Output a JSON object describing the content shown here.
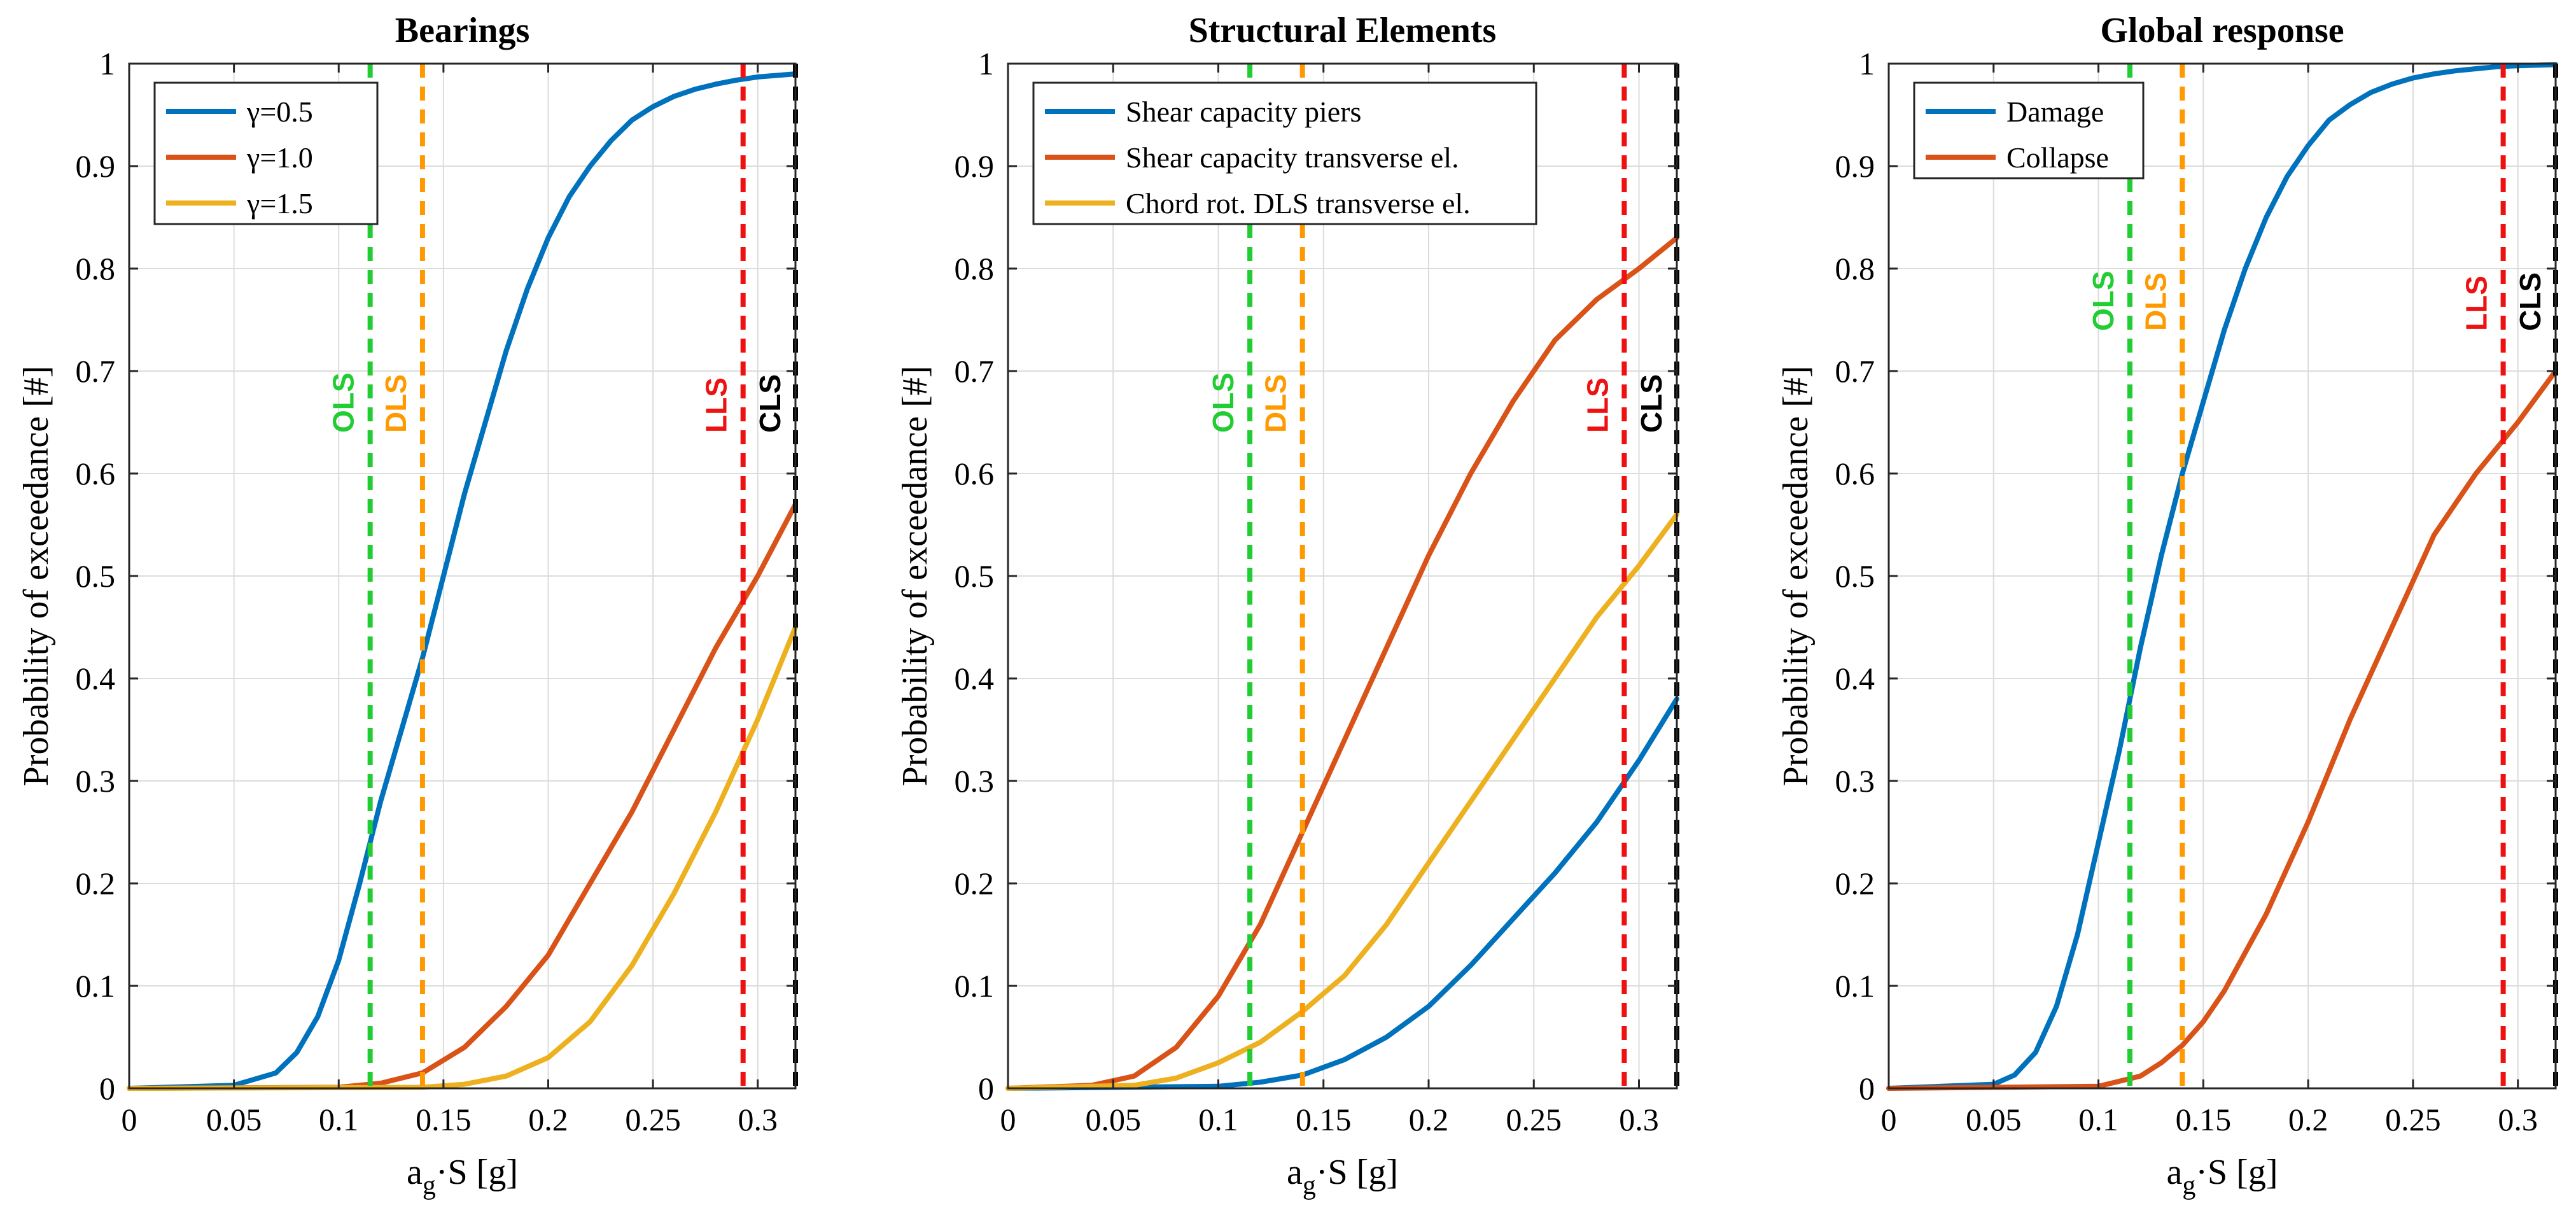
{
  "chart_data": [
    {
      "type": "line",
      "title": "Bearings",
      "xlabel_main": "a",
      "xlabel_sub": "g",
      "xlabel_rest": "·S [g]",
      "ylabel": "Probability of exceedance [#]",
      "xlim": [
        0,
        0.318
      ],
      "ylim": [
        0,
        1
      ],
      "xticks": [
        0,
        0.05,
        0.1,
        0.15,
        0.2,
        0.25,
        0.3
      ],
      "xtick_labels": [
        "0",
        "0.05",
        "0.1",
        "0.15",
        "0.2",
        "0.25",
        "0.3"
      ],
      "yticks": [
        0,
        0.1,
        0.2,
        0.3,
        0.4,
        0.5,
        0.6,
        0.7,
        0.8,
        0.9,
        1
      ],
      "ytick_labels": [
        "0",
        "0.1",
        "0.2",
        "0.3",
        "0.4",
        "0.5",
        "0.6",
        "0.7",
        "0.8",
        "0.9",
        "1"
      ],
      "grid": true,
      "legend_position": "top-left",
      "series": [
        {
          "name": "γ=0.5",
          "color": "#0072BD",
          "x": [
            0,
            0.05,
            0.07,
            0.08,
            0.09,
            0.1,
            0.11,
            0.12,
            0.13,
            0.14,
            0.15,
            0.16,
            0.17,
            0.18,
            0.19,
            0.2,
            0.21,
            0.22,
            0.23,
            0.24,
            0.25,
            0.26,
            0.27,
            0.28,
            0.29,
            0.3,
            0.318
          ],
          "y": [
            0,
            0.003,
            0.015,
            0.035,
            0.07,
            0.125,
            0.2,
            0.28,
            0.35,
            0.42,
            0.5,
            0.58,
            0.65,
            0.72,
            0.78,
            0.83,
            0.87,
            0.9,
            0.925,
            0.945,
            0.958,
            0.968,
            0.975,
            0.98,
            0.984,
            0.987,
            0.99
          ]
        },
        {
          "name": "γ=1.0",
          "color": "#D95319",
          "x": [
            0,
            0.1,
            0.12,
            0.14,
            0.16,
            0.18,
            0.2,
            0.22,
            0.24,
            0.26,
            0.28,
            0.3,
            0.318
          ],
          "y": [
            0,
            0.001,
            0.005,
            0.015,
            0.04,
            0.08,
            0.13,
            0.2,
            0.27,
            0.35,
            0.43,
            0.5,
            0.57
          ]
        },
        {
          "name": "γ=1.5",
          "color": "#EDB120",
          "x": [
            0,
            0.14,
            0.16,
            0.18,
            0.2,
            0.22,
            0.24,
            0.26,
            0.28,
            0.3,
            0.318
          ],
          "y": [
            0,
            0.001,
            0.004,
            0.012,
            0.03,
            0.065,
            0.12,
            0.19,
            0.27,
            0.36,
            0.45
          ]
        }
      ],
      "limit_states": [
        {
          "label": "OLS",
          "x": 0.115,
          "color": "#22CC33"
        },
        {
          "label": "DLS",
          "x": 0.14,
          "color": "#FF9900"
        },
        {
          "label": "LLS",
          "x": 0.293,
          "color": "#EE1111"
        },
        {
          "label": "CLS",
          "x": 0.318,
          "color": "#000000"
        }
      ]
    },
    {
      "type": "line",
      "title": "Structural Elements",
      "xlabel_main": "a",
      "xlabel_sub": "g",
      "xlabel_rest": "·S [g]",
      "ylabel": "Probability of exceedance [#]",
      "xlim": [
        0,
        0.318
      ],
      "ylim": [
        0,
        1
      ],
      "xticks": [
        0,
        0.05,
        0.1,
        0.15,
        0.2,
        0.25,
        0.3
      ],
      "xtick_labels": [
        "0",
        "0.05",
        "0.1",
        "0.15",
        "0.2",
        "0.25",
        "0.3"
      ],
      "yticks": [
        0,
        0.1,
        0.2,
        0.3,
        0.4,
        0.5,
        0.6,
        0.7,
        0.8,
        0.9,
        1
      ],
      "ytick_labels": [
        "0",
        "0.1",
        "0.2",
        "0.3",
        "0.4",
        "0.5",
        "0.6",
        "0.7",
        "0.8",
        "0.9",
        "1"
      ],
      "grid": true,
      "legend_position": "top-left",
      "series": [
        {
          "name": "Shear capacity piers",
          "color": "#0072BD",
          "x": [
            0,
            0.1,
            0.12,
            0.14,
            0.16,
            0.18,
            0.2,
            0.22,
            0.24,
            0.26,
            0.28,
            0.3,
            0.318
          ],
          "y": [
            0,
            0.002,
            0.006,
            0.013,
            0.028,
            0.05,
            0.08,
            0.12,
            0.165,
            0.21,
            0.26,
            0.32,
            0.38
          ]
        },
        {
          "name": "Shear capacity transverse el.",
          "color": "#D95319",
          "x": [
            0,
            0.04,
            0.06,
            0.08,
            0.1,
            0.12,
            0.14,
            0.16,
            0.18,
            0.2,
            0.22,
            0.24,
            0.26,
            0.28,
            0.3,
            0.318
          ],
          "y": [
            0,
            0.003,
            0.012,
            0.04,
            0.09,
            0.16,
            0.25,
            0.34,
            0.43,
            0.52,
            0.6,
            0.67,
            0.73,
            0.77,
            0.8,
            0.83
          ]
        },
        {
          "name": "Chord rot. DLS transverse el.",
          "color": "#EDB120",
          "x": [
            0,
            0.06,
            0.08,
            0.1,
            0.12,
            0.14,
            0.16,
            0.18,
            0.2,
            0.22,
            0.24,
            0.26,
            0.28,
            0.3,
            0.318
          ],
          "y": [
            0,
            0.003,
            0.01,
            0.025,
            0.045,
            0.075,
            0.11,
            0.16,
            0.22,
            0.28,
            0.34,
            0.4,
            0.46,
            0.51,
            0.56
          ]
        }
      ],
      "limit_states": [
        {
          "label": "OLS",
          "x": 0.115,
          "color": "#22CC33"
        },
        {
          "label": "DLS",
          "x": 0.14,
          "color": "#FF9900"
        },
        {
          "label": "LLS",
          "x": 0.293,
          "color": "#EE1111"
        },
        {
          "label": "CLS",
          "x": 0.318,
          "color": "#000000"
        }
      ]
    },
    {
      "type": "line",
      "title": "Global response",
      "xlabel_main": "a",
      "xlabel_sub": "g",
      "xlabel_rest": "·S [g]",
      "ylabel": "Probability of exceedance [#]",
      "xlim": [
        0,
        0.318
      ],
      "ylim": [
        0,
        1
      ],
      "xticks": [
        0,
        0.05,
        0.1,
        0.15,
        0.2,
        0.25,
        0.3
      ],
      "xtick_labels": [
        "0",
        "0.05",
        "0.1",
        "0.15",
        "0.2",
        "0.25",
        "0.3"
      ],
      "yticks": [
        0,
        0.1,
        0.2,
        0.3,
        0.4,
        0.5,
        0.6,
        0.7,
        0.8,
        0.9,
        1
      ],
      "ytick_labels": [
        "0",
        "0.1",
        "0.2",
        "0.3",
        "0.4",
        "0.5",
        "0.6",
        "0.7",
        "0.8",
        "0.9",
        "1"
      ],
      "grid": true,
      "legend_position": "top-left",
      "series": [
        {
          "name": "Damage",
          "color": "#0072BD",
          "x": [
            0,
            0.05,
            0.06,
            0.07,
            0.08,
            0.09,
            0.1,
            0.11,
            0.12,
            0.13,
            0.14,
            0.15,
            0.16,
            0.17,
            0.18,
            0.19,
            0.2,
            0.21,
            0.22,
            0.23,
            0.24,
            0.25,
            0.26,
            0.27,
            0.28,
            0.29,
            0.3,
            0.318
          ],
          "y": [
            0,
            0.004,
            0.013,
            0.035,
            0.08,
            0.15,
            0.24,
            0.33,
            0.43,
            0.52,
            0.6,
            0.67,
            0.74,
            0.8,
            0.85,
            0.89,
            0.92,
            0.945,
            0.96,
            0.972,
            0.98,
            0.986,
            0.99,
            0.993,
            0.995,
            0.997,
            0.998,
            0.999
          ]
        },
        {
          "name": "Collapse",
          "color": "#D95319",
          "x": [
            0,
            0.1,
            0.12,
            0.13,
            0.14,
            0.15,
            0.16,
            0.18,
            0.2,
            0.22,
            0.24,
            0.26,
            0.28,
            0.3,
            0.318
          ],
          "y": [
            0,
            0.002,
            0.012,
            0.025,
            0.042,
            0.065,
            0.095,
            0.17,
            0.26,
            0.36,
            0.45,
            0.54,
            0.6,
            0.65,
            0.7
          ]
        }
      ],
      "limit_states": [
        {
          "label": "OLS",
          "x": 0.115,
          "color": "#22CC33"
        },
        {
          "label": "DLS",
          "x": 0.14,
          "color": "#FF9900"
        },
        {
          "label": "LLS",
          "x": 0.293,
          "color": "#EE1111"
        },
        {
          "label": "CLS",
          "x": 0.318,
          "color": "#000000"
        }
      ]
    }
  ]
}
